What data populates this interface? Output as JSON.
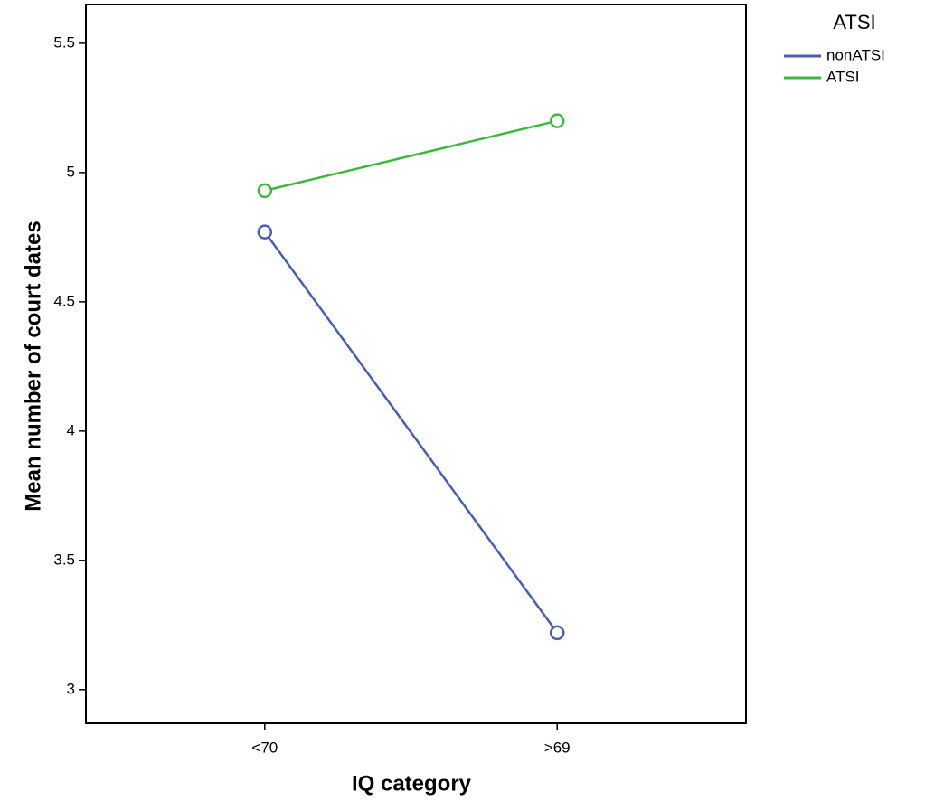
{
  "chart_data": {
    "type": "line",
    "x_label": "IQ category",
    "y_label": "Mean number of court dates",
    "legend_title": "ATSI",
    "legend_position": "upper right outside",
    "categories": [
      "<70",
      ">69"
    ],
    "series": [
      {
        "name": "nonATSI",
        "color": "#4a5db2",
        "values": [
          4.77,
          3.22
        ]
      },
      {
        "name": "ATSI",
        "color": "#3cb93c",
        "values": [
          4.93,
          5.2
        ]
      }
    ],
    "ylim": [
      2.87,
      5.65
    ],
    "yticks": [
      3,
      3.5,
      4,
      4.5,
      5,
      5.5
    ],
    "grid": false
  }
}
